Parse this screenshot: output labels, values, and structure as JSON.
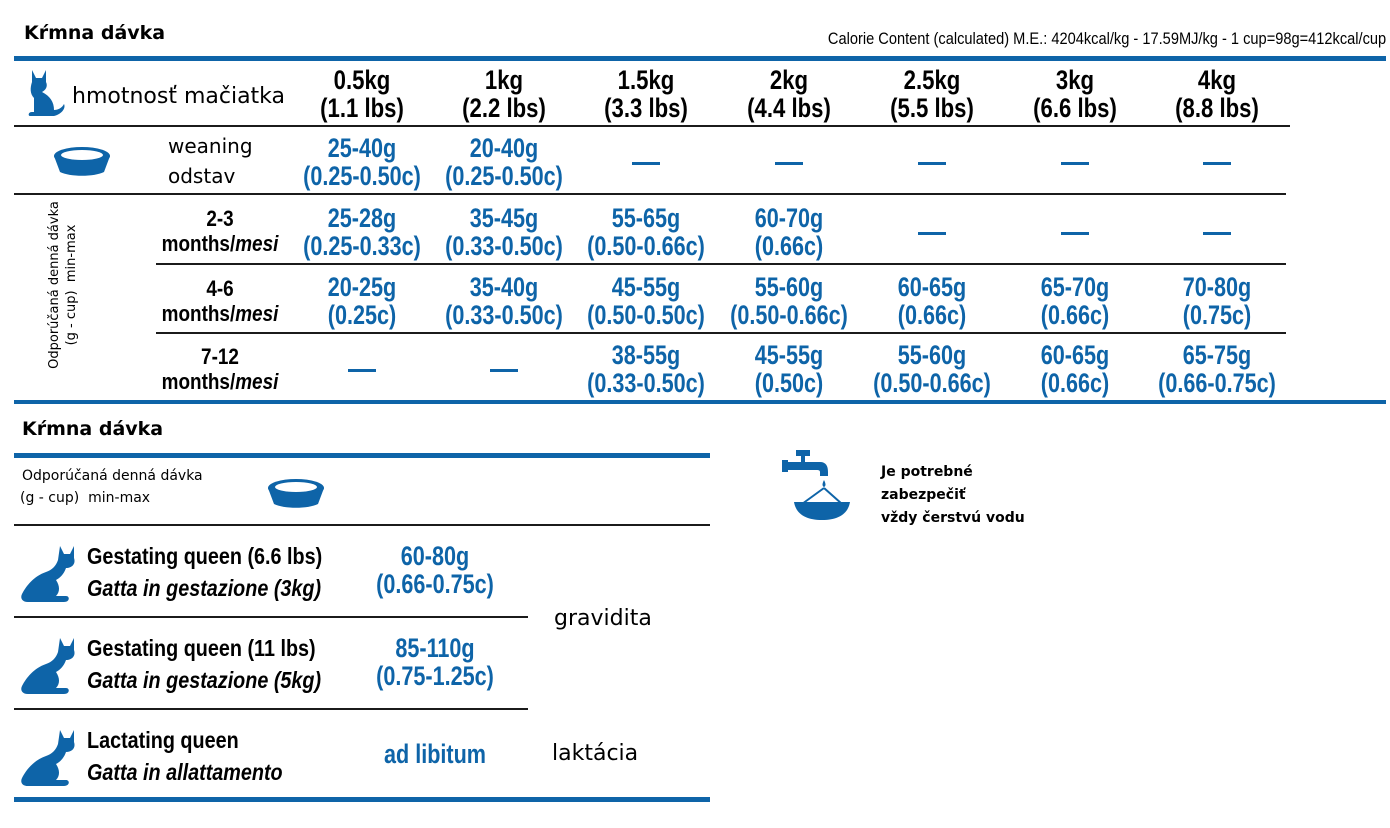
{
  "top": {
    "title": "Kŕmna dávka",
    "calorie": "Calorie Content (calculated) M.E.: 4204kcal/kg - 17.59MJ/kg - 1 cup=98g=412kcal/cup",
    "header_label": "hmotnosť mačiatka",
    "weights": [
      {
        "kg": "0.5kg",
        "lbs": "(1.1 lbs)"
      },
      {
        "kg": "1kg",
        "lbs": "(2.2 lbs)"
      },
      {
        "kg": "1.5kg",
        "lbs": "(3.3 lbs)"
      },
      {
        "kg": "2kg",
        "lbs": "(4.4 lbs)"
      },
      {
        "kg": "2.5kg",
        "lbs": "(5.5 lbs)"
      },
      {
        "kg": "3kg",
        "lbs": "(6.6 lbs)"
      },
      {
        "kg": "4kg",
        "lbs": "(8.8 lbs)"
      }
    ],
    "weaning": {
      "label1": "weaning",
      "label2": "odstav"
    },
    "side_label_1": "Odporúčaná denná dávka",
    "side_label_2": "(g - cup)",
    "side_label_3": "min-max",
    "rows": [
      {
        "range": "2-3",
        "unit": "months/",
        "unit_it": "mesi"
      },
      {
        "range": "4-6",
        "unit": "months/",
        "unit_it": "mesi"
      },
      {
        "range": "7-12",
        "unit": "months/",
        "unit_it": "mesi"
      }
    ],
    "cells": [
      [
        {
          "g": "25-40g",
          "c": "(0.25-0.50c)"
        },
        {
          "g": "20-40g",
          "c": "(0.25-0.50c)"
        },
        null,
        null,
        null,
        null,
        null
      ],
      [
        {
          "g": "25-28g",
          "c": "(0.25-0.33c)"
        },
        {
          "g": "35-45g",
          "c": "(0.33-0.50c)"
        },
        {
          "g": "55-65g",
          "c": "(0.50-0.66c)"
        },
        {
          "g": "60-70g",
          "c": "(0.66c)"
        },
        null,
        null,
        null
      ],
      [
        {
          "g": "20-25g",
          "c": "(0.25c)"
        },
        {
          "g": "35-40g",
          "c": "(0.33-0.50c)"
        },
        {
          "g": "45-55g",
          "c": "(0.50-0.50c)"
        },
        {
          "g": "55-60g",
          "c": "(0.50-0.66c)"
        },
        {
          "g": "60-65g",
          "c": "(0.66c)"
        },
        {
          "g": "65-70g",
          "c": "(0.66c)"
        },
        {
          "g": "70-80g",
          "c": "(0.75c)"
        }
      ],
      [
        null,
        null,
        {
          "g": "38-55g",
          "c": "(0.33-0.50c)"
        },
        {
          "g": "45-55g",
          "c": "(0.50c)"
        },
        {
          "g": "55-60g",
          "c": "(0.50-0.66c)"
        },
        {
          "g": "60-65g",
          "c": "(0.66c)"
        },
        {
          "g": "65-75g",
          "c": "(0.66-0.75c)"
        }
      ]
    ]
  },
  "bottom": {
    "title": "Kŕmna dávka",
    "sub1": "Odporúčaná denná dávka",
    "sub2": "(g - cup)",
    "sub3": "min-max",
    "queens": [
      {
        "en": "Gestating queen (6.6 lbs)",
        "it": "Gatta in gestazione (3kg)",
        "g": "60-80g",
        "c": "(0.66-0.75c)"
      },
      {
        "en": "Gestating queen (11 lbs)",
        "it": "Gatta in gestazione (5kg)",
        "g": "85-110g",
        "c": "(0.75-1.25c)"
      },
      {
        "en": "Lactating queen",
        "it": "Gatta in allattamento",
        "g": "ad libitum",
        "c": ""
      }
    ],
    "gravidita": "gravidita",
    "laktacia": "laktácia",
    "water1": "Je potrebné",
    "water2": "zabezpečiť",
    "water3": "vždy čerstvú vodu"
  },
  "colors": {
    "accent": "#0e64a8",
    "text": "#000000"
  }
}
